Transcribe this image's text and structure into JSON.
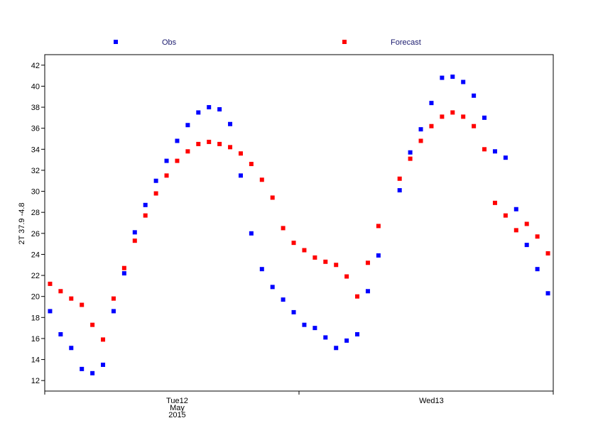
{
  "chart_data": {
    "type": "scatter",
    "ylabel": "2T 37.9 -4.8",
    "ylim": [
      11,
      43
    ],
    "yticks": [
      12,
      14,
      16,
      18,
      20,
      22,
      24,
      26,
      28,
      30,
      32,
      34,
      36,
      38,
      40,
      42
    ],
    "x_steps": 48,
    "x_tick_labels": [
      {
        "step": 12.5,
        "lines": [
          "Tue12",
          "May",
          "2015"
        ]
      },
      {
        "step": 36.5,
        "lines": [
          "Wed13"
        ]
      }
    ],
    "x_minor_ticks": [
      0,
      24,
      48
    ],
    "grid": false,
    "legend": "top",
    "series": [
      {
        "name": "Obs",
        "color": "#0000ff",
        "points": [
          [
            0,
            18.6
          ],
          [
            1,
            16.4
          ],
          [
            2,
            15.1
          ],
          [
            3,
            13.1
          ],
          [
            4,
            12.7
          ],
          [
            5,
            13.5
          ],
          [
            6,
            18.6
          ],
          [
            7,
            22.2
          ],
          [
            8,
            26.1
          ],
          [
            9,
            28.7
          ],
          [
            10,
            31.0
          ],
          [
            11,
            32.9
          ],
          [
            12,
            34.8
          ],
          [
            13,
            36.3
          ],
          [
            14,
            37.5
          ],
          [
            15,
            38.0
          ],
          [
            16,
            37.8
          ],
          [
            17,
            36.4
          ],
          [
            18,
            31.5
          ],
          [
            19,
            26.0
          ],
          [
            20,
            22.6
          ],
          [
            21,
            20.9
          ],
          [
            22,
            19.7
          ],
          [
            23,
            18.5
          ],
          [
            24,
            17.3
          ],
          [
            25,
            17.0
          ],
          [
            26,
            16.1
          ],
          [
            27,
            15.1
          ],
          [
            28,
            15.8
          ],
          [
            29,
            16.4
          ],
          [
            30,
            20.5
          ],
          [
            31,
            23.9
          ],
          [
            33,
            30.1
          ],
          [
            34,
            33.7
          ],
          [
            35,
            35.9
          ],
          [
            36,
            38.4
          ],
          [
            37,
            40.8
          ],
          [
            38,
            40.9
          ],
          [
            39,
            40.4
          ],
          [
            40,
            39.1
          ],
          [
            41,
            37.0
          ],
          [
            42,
            33.8
          ],
          [
            43,
            33.2
          ],
          [
            44,
            28.3
          ],
          [
            45,
            24.9
          ],
          [
            46,
            22.6
          ],
          [
            47,
            20.3
          ]
        ]
      },
      {
        "name": "Forecast",
        "color": "#ff0000",
        "points": [
          [
            0,
            21.2
          ],
          [
            1,
            20.5
          ],
          [
            2,
            19.8
          ],
          [
            3,
            19.2
          ],
          [
            4,
            17.3
          ],
          [
            5,
            15.9
          ],
          [
            6,
            19.8
          ],
          [
            7,
            22.7
          ],
          [
            8,
            25.3
          ],
          [
            9,
            27.7
          ],
          [
            10,
            29.8
          ],
          [
            11,
            31.5
          ],
          [
            12,
            32.9
          ],
          [
            13,
            33.8
          ],
          [
            14,
            34.5
          ],
          [
            15,
            34.7
          ],
          [
            16,
            34.5
          ],
          [
            17,
            34.2
          ],
          [
            18,
            33.6
          ],
          [
            19,
            32.6
          ],
          [
            20,
            31.1
          ],
          [
            21,
            29.4
          ],
          [
            22,
            26.5
          ],
          [
            23,
            25.1
          ],
          [
            24,
            24.4
          ],
          [
            25,
            23.7
          ],
          [
            26,
            23.3
          ],
          [
            27,
            23.0
          ],
          [
            28,
            21.9
          ],
          [
            29,
            20.0
          ],
          [
            30,
            23.2
          ],
          [
            31,
            26.7
          ],
          [
            33,
            31.2
          ],
          [
            34,
            33.1
          ],
          [
            35,
            34.8
          ],
          [
            36,
            36.2
          ],
          [
            37,
            37.1
          ],
          [
            38,
            37.5
          ],
          [
            39,
            37.1
          ],
          [
            40,
            36.2
          ],
          [
            41,
            34.0
          ],
          [
            42,
            28.9
          ],
          [
            43,
            27.7
          ],
          [
            44,
            26.3
          ],
          [
            45,
            26.9
          ],
          [
            46,
            25.7
          ],
          [
            47,
            24.1
          ]
        ]
      }
    ]
  }
}
